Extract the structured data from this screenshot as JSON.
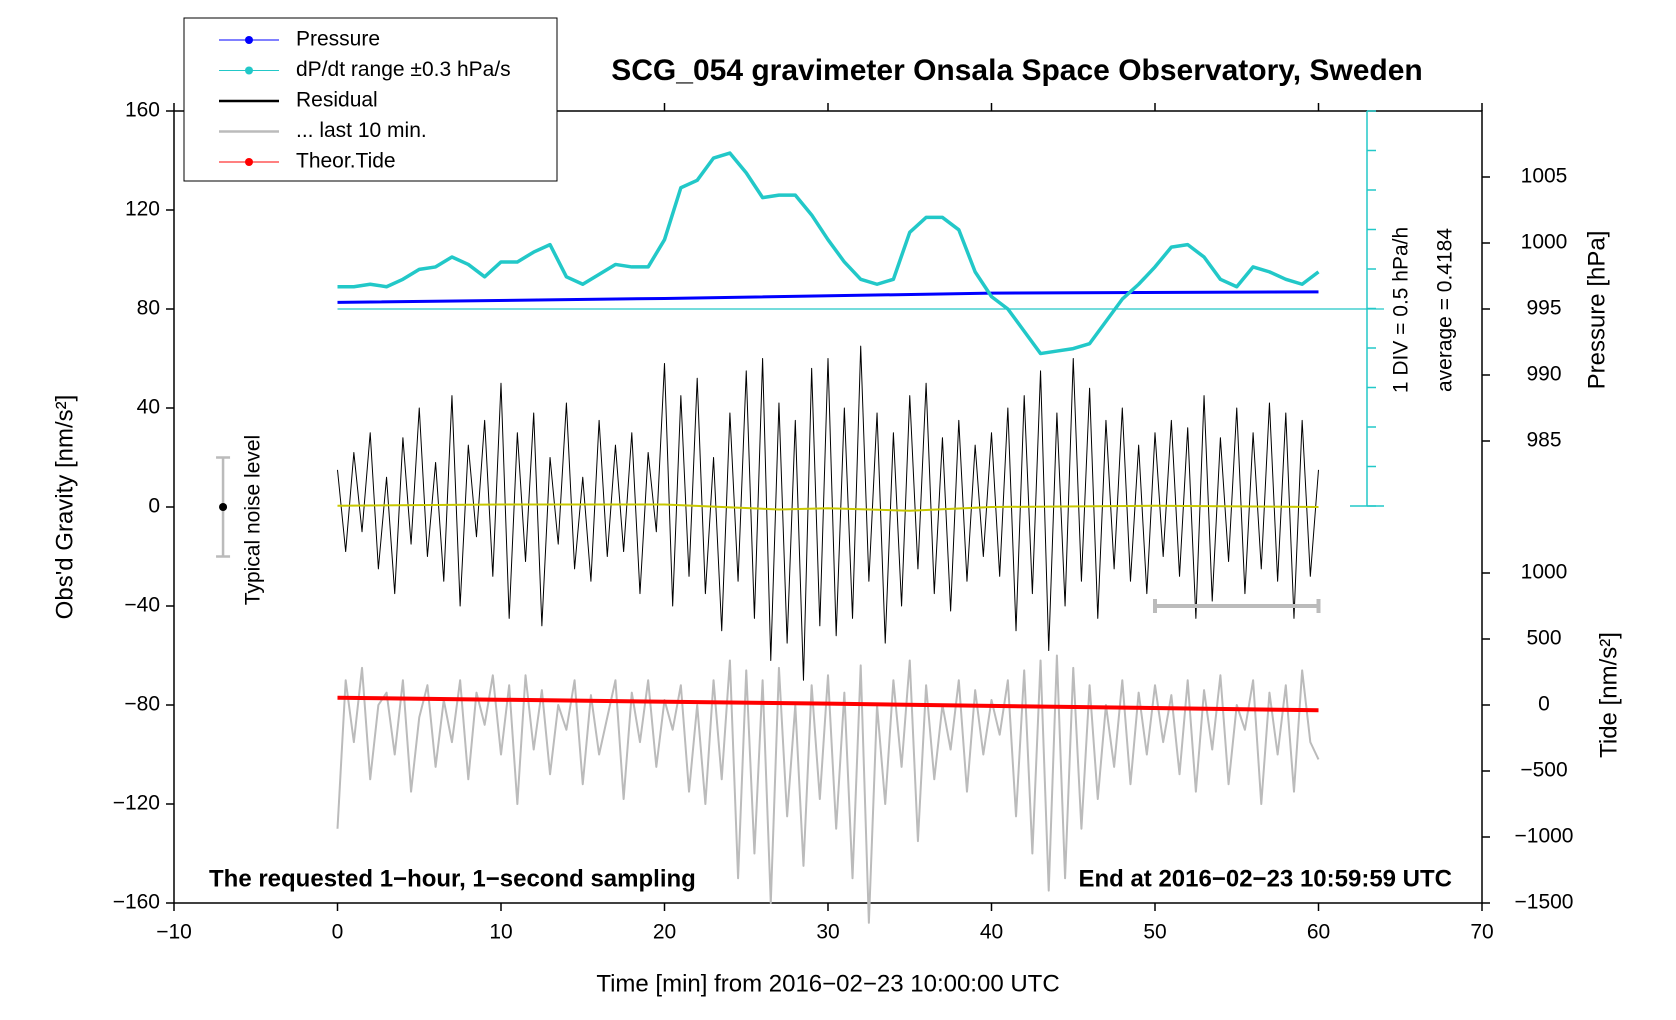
{
  "chart_data": {
    "type": "line",
    "title": "SCG_054 gravimeter Onsala Space Observatory, Sweden",
    "x_label": "Time [min] from 2016−02−23 10:00:00 UTC",
    "y_label": "Obs'd Gravity [nm/s²]",
    "y2_label": "Pressure [hPa]",
    "y3_label": "Tide [nm/s²]",
    "annotations": [
      "1 DIV = 0.5 hPa/h",
      "average = 0.4184",
      "The requested 1−hour, 1−second sampling",
      "End at 2016−02−23 10:59:59 UTC"
    ],
    "noise_bar": {
      "label": "Typical noise level",
      "x": -7,
      "value": 0,
      "error": 20
    },
    "window": {
      "x": [
        50,
        60
      ],
      "value": -40
    },
    "xlim": [
      -10,
      70
    ],
    "xticks": [
      {
        "value": -10,
        "label": "−10"
      },
      0,
      10,
      20,
      30,
      40,
      50,
      60,
      70
    ],
    "ylim": [
      -160,
      160
    ],
    "yticks": [
      {
        "value": -160,
        "label": "−160"
      },
      {
        "value": -120,
        "label": "−120"
      },
      {
        "value": -80,
        "label": "−80"
      },
      {
        "value": -40,
        "label": "−40"
      },
      0,
      40,
      80,
      120,
      160
    ],
    "y2lim": [
      950,
      1010
    ],
    "y2ticks": [
      985,
      990,
      995,
      1000,
      1005
    ],
    "y3lim": [
      -1500,
      4500
    ],
    "y3ticks": [
      {
        "value": -1500,
        "label": "−1500"
      },
      {
        "value": -1000,
        "label": "−1000"
      },
      {
        "value": -500,
        "label": "−500"
      },
      0,
      500,
      1000
    ],
    "x": [
      0,
      0.5,
      1,
      1.5,
      2,
      2.5,
      3,
      3.5,
      4,
      4.5,
      5,
      5.5,
      6,
      6.5,
      7,
      7.5,
      8,
      8.5,
      9,
      9.5,
      10,
      10.5,
      11,
      11.5,
      12,
      12.5,
      13,
      13.5,
      14,
      14.5,
      15,
      15.5,
      16,
      16.5,
      17,
      17.5,
      18,
      18.5,
      19,
      19.5,
      20,
      20.5,
      21,
      21.5,
      22,
      22.5,
      23,
      23.5,
      24,
      24.5,
      25,
      25.5,
      26,
      26.5,
      27,
      27.5,
      28,
      28.5,
      29,
      29.5,
      30,
      30.5,
      31,
      31.5,
      32,
      32.5,
      33,
      33.5,
      34,
      34.5,
      35,
      35.5,
      36,
      36.5,
      37,
      37.5,
      38,
      38.5,
      39,
      39.5,
      40,
      40.5,
      41,
      41.5,
      42,
      42.5,
      43,
      43.5,
      44,
      44.5,
      45,
      45.5,
      46,
      46.5,
      47,
      47.5,
      48,
      48.5,
      49,
      49.5,
      50,
      50.5,
      51,
      51.5,
      52,
      52.5,
      53,
      53.5,
      54,
      54.5,
      55,
      55.5,
      56,
      56.5,
      57,
      57.5,
      58,
      58.5,
      59,
      59.5,
      60
    ],
    "series": [
      {
        "name": "Pressure",
        "color": "#0000ff",
        "axis": "y2",
        "marker": true,
        "width": 3,
        "x": [
          0,
          20,
          40,
          60
        ],
        "values": [
          995.5,
          995.8,
          996.2,
          996.3
        ]
      },
      {
        "name": "dP/dt range ±0.3 hPa/s",
        "color": "#22c8c8",
        "axis": "y",
        "marker": true,
        "width": 3.5,
        "average_line": 80,
        "x": [
          0,
          1,
          2,
          3,
          4,
          5,
          6,
          7,
          8,
          9,
          10,
          11,
          12,
          13,
          14,
          15,
          16,
          17,
          18,
          19,
          20,
          21,
          22,
          23,
          24,
          25,
          26,
          27,
          28,
          29,
          30,
          31,
          32,
          33,
          34,
          35,
          36,
          37,
          38,
          39,
          40,
          41,
          42,
          43,
          44,
          45,
          46,
          47,
          48,
          49,
          50,
          51,
          52,
          53,
          54,
          55,
          56,
          57,
          58,
          59,
          60
        ],
        "values": [
          89,
          89,
          90,
          89,
          92,
          96,
          97,
          101,
          98,
          93,
          99,
          99,
          103,
          106,
          93,
          90,
          94,
          98,
          97,
          97,
          108,
          129,
          132,
          141,
          143,
          135,
          125,
          126,
          126,
          118,
          108,
          99,
          92,
          90,
          92,
          111,
          117,
          117,
          112,
          95,
          85,
          80,
          71,
          62,
          63,
          64,
          66,
          75,
          84,
          90,
          97,
          105,
          106,
          101,
          92,
          89,
          97,
          95,
          92,
          90,
          95
        ]
      },
      {
        "name": "Residual",
        "color": "#000000",
        "axis": "y",
        "width": 1,
        "values": [
          15,
          -18,
          22,
          -10,
          30,
          -25,
          12,
          -35,
          28,
          -15,
          40,
          -20,
          18,
          -30,
          45,
          -40,
          25,
          -12,
          35,
          -28,
          50,
          -45,
          30,
          -22,
          38,
          -48,
          20,
          -15,
          42,
          -25,
          12,
          -30,
          35,
          -20,
          25,
          -18,
          30,
          -35,
          22,
          -10,
          58,
          -40,
          45,
          -28,
          52,
          -35,
          20,
          -50,
          38,
          -30,
          55,
          -45,
          60,
          -62,
          42,
          -55,
          35,
          -70,
          56,
          -48,
          60,
          -52,
          40,
          -45,
          65,
          -30,
          38,
          -55,
          30,
          -40,
          45,
          -25,
          50,
          -35,
          28,
          -42,
          35,
          -30,
          25,
          -20,
          30,
          -28,
          40,
          -50,
          45,
          -35,
          55,
          -58,
          38,
          -40,
          60,
          -30,
          48,
          -45,
          35,
          -25,
          40,
          -30,
          25,
          -35,
          30,
          -20,
          35,
          -28,
          32,
          -45,
          45,
          -38,
          28,
          -22,
          40,
          -35,
          30,
          -25,
          42,
          -30,
          38,
          -45,
          35,
          -28,
          15
        ]
      },
      {
        "name": "... last 10 min.",
        "color": "#bbbbbb",
        "axis": "y",
        "width": 2,
        "values": [
          -130,
          -70,
          -95,
          -65,
          -110,
          -80,
          -75,
          -100,
          -70,
          -115,
          -85,
          -72,
          -105,
          -78,
          -95,
          -70,
          -110,
          -75,
          -88,
          -68,
          -100,
          -72,
          -120,
          -68,
          -98,
          -74,
          -108,
          -80,
          -90,
          -70,
          -112,
          -76,
          -100,
          -85,
          -70,
          -118,
          -75,
          -95,
          -70,
          -105,
          -78,
          -90,
          -72,
          -115,
          -80,
          -120,
          -70,
          -110,
          -62,
          -150,
          -66,
          -140,
          -70,
          -160,
          -65,
          -125,
          -80,
          -145,
          -72,
          -118,
          -68,
          -130,
          -75,
          -150,
          -64,
          -168,
          -80,
          -120,
          -70,
          -105,
          -62,
          -135,
          -72,
          -110,
          -80,
          -98,
          -70,
          -115,
          -74,
          -100,
          -78,
          -92,
          -70,
          -125,
          -66,
          -140,
          -62,
          -155,
          -60,
          -150,
          -65,
          -130,
          -72,
          -118,
          -80,
          -105,
          -70,
          -112,
          -75,
          -100,
          -72,
          -95,
          -76,
          -108,
          -70,
          -115,
          -74,
          -98,
          -68,
          -112,
          -80,
          -90,
          -70,
          -120,
          -75,
          -100,
          -72,
          -115,
          -66,
          -95,
          -102
        ]
      },
      {
        "name": "Theor.Tide",
        "color": "#ff0000",
        "axis": "y3",
        "marker": true,
        "width": 4,
        "x": [
          0,
          30,
          60
        ],
        "values": [
          55,
          10,
          -40
        ]
      },
      {
        "color": "#c8c800",
        "axis": "y",
        "width": 2,
        "x": [
          0,
          10,
          20,
          27,
          30,
          35,
          40,
          50,
          60
        ],
        "values": [
          0.5,
          1,
          1,
          -1,
          -0.5,
          -1.5,
          0,
          0.5,
          0
        ]
      }
    ]
  }
}
